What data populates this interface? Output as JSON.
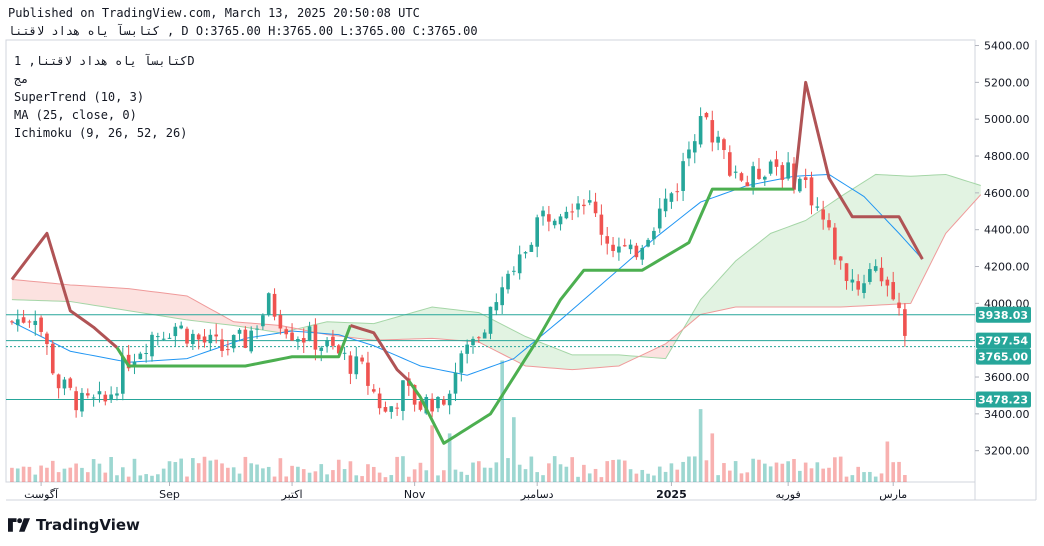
{
  "header": {
    "published": "Published on TradingView.com, March 13, 2025 20:50:08 UTC",
    "symbol_line": "کتابسآ یاه هداد لاقتنا , D O:3765.00 H:3765.00 L:3765.00 C:3765.00"
  },
  "legend": {
    "title": "کتابسآ یاه هداد لاقتنا, 1D",
    "subtitle": "مج",
    "supertrend": "SuperTrend (10, 3)",
    "ma": "MA (25, close, 0)",
    "ichimoku": "Ichimoku (9, 26, 52, 26)"
  },
  "brand": {
    "name": "TradingView"
  },
  "colors": {
    "up": "#26a69a",
    "down": "#ef5350",
    "supertrend_up": "#4caf50",
    "supertrend_down": "#b05355",
    "ma": "#2196f3",
    "cloud_up": "#d8efd8",
    "cloud_down": "#fbd8d6",
    "level": "#26a69a"
  },
  "chart_data": {
    "type": "candlestick",
    "y_axis_ticks": [
      "5400.00",
      "5200.00",
      "5000.00",
      "4800.00",
      "4600.00",
      "4400.00",
      "4200.00",
      "4000.00",
      "3600.00",
      "3400.00",
      "3200.00"
    ],
    "y_range": [
      3030,
      5430
    ],
    "x_axis_labels": [
      {
        "label": "آگوست",
        "index": 5
      },
      {
        "label": "Sep",
        "index": 27
      },
      {
        "label": "اکتبر",
        "index": 48
      },
      {
        "label": "Nov",
        "index": 69
      },
      {
        "label": "دسامبر",
        "index": 90
      },
      {
        "label": "2025",
        "index": 113
      },
      {
        "label": "فوریه",
        "index": 133
      },
      {
        "label": "مارس",
        "index": 151
      }
    ],
    "bar_count": 165,
    "price_labels": [
      {
        "value": "3938.03",
        "color": "#26a69a"
      },
      {
        "value": "3797.54",
        "color": "#26a69a"
      },
      {
        "value": "3765.00",
        "color": "#26a69a"
      },
      {
        "value": "3478.23",
        "color": "#26a69a"
      }
    ],
    "anchors": [
      [
        0,
        3900
      ],
      [
        4,
        3950
      ],
      [
        8,
        3560
      ],
      [
        12,
        3450
      ],
      [
        16,
        3460
      ],
      [
        20,
        3700
      ],
      [
        24,
        3830
      ],
      [
        28,
        3880
      ],
      [
        32,
        3800
      ],
      [
        36,
        3750
      ],
      [
        40,
        3800
      ],
      [
        44,
        4000
      ],
      [
        48,
        3850
      ],
      [
        52,
        3800
      ],
      [
        56,
        3720
      ],
      [
        60,
        3630
      ],
      [
        64,
        3400
      ],
      [
        67,
        3530
      ],
      [
        70,
        3450
      ],
      [
        74,
        3500
      ],
      [
        78,
        3760
      ],
      [
        82,
        3950
      ],
      [
        86,
        4150
      ],
      [
        90,
        4450
      ],
      [
        94,
        4540
      ],
      [
        98,
        4580
      ],
      [
        102,
        4350
      ],
      [
        106,
        4250
      ],
      [
        110,
        4450
      ],
      [
        114,
        4650
      ],
      [
        118,
        5050
      ],
      [
        122,
        4800
      ],
      [
        126,
        4650
      ],
      [
        130,
        4780
      ],
      [
        133,
        4700
      ],
      [
        136,
        4650
      ],
      [
        139,
        4450
      ],
      [
        142,
        4200
      ],
      [
        145,
        4100
      ],
      [
        148,
        4220
      ],
      [
        150,
        4100
      ],
      [
        152,
        3950
      ],
      [
        153,
        3765
      ]
    ],
    "volume_highlights": [
      [
        84,
        0.75
      ],
      [
        118,
        0.45
      ],
      [
        154,
        0.45
      ],
      [
        72,
        0.35
      ],
      [
        86,
        0.4
      ],
      [
        75,
        0.3
      ],
      [
        150,
        0.25
      ],
      [
        120,
        0.3
      ]
    ],
    "supertrend": [
      [
        0,
        4130
      ],
      [
        6,
        4380
      ],
      [
        10,
        3960
      ],
      [
        14,
        3870
      ],
      [
        18,
        3760
      ],
      [
        20,
        3660
      ],
      [
        28,
        3660
      ],
      [
        40,
        3660
      ],
      [
        48,
        3710
      ],
      [
        56,
        3710
      ],
      [
        58,
        3880
      ],
      [
        62,
        3840
      ],
      [
        66,
        3640
      ],
      [
        68,
        3580
      ],
      [
        70,
        3490
      ],
      [
        74,
        3240
      ],
      [
        82,
        3400
      ],
      [
        90,
        3800
      ],
      [
        94,
        4020
      ],
      [
        98,
        4180
      ],
      [
        108,
        4180
      ],
      [
        116,
        4330
      ],
      [
        120,
        4620
      ],
      [
        134,
        4620
      ],
      [
        136,
        5200
      ],
      [
        140,
        4680
      ],
      [
        144,
        4470
      ],
      [
        152,
        4470
      ],
      [
        156,
        4240
      ]
    ],
    "supertrend_colors": [
      [
        0,
        "down"
      ],
      [
        18,
        "up"
      ],
      [
        58,
        "down"
      ],
      [
        68,
        "up"
      ],
      [
        134,
        "down"
      ]
    ],
    "ma": [
      [
        0,
        3900
      ],
      [
        10,
        3740
      ],
      [
        20,
        3680
      ],
      [
        30,
        3700
      ],
      [
        40,
        3810
      ],
      [
        48,
        3850
      ],
      [
        56,
        3830
      ],
      [
        62,
        3770
      ],
      [
        70,
        3660
      ],
      [
        78,
        3610
      ],
      [
        86,
        3700
      ],
      [
        94,
        3910
      ],
      [
        102,
        4130
      ],
      [
        110,
        4350
      ],
      [
        118,
        4550
      ],
      [
        126,
        4640
      ],
      [
        134,
        4690
      ],
      [
        140,
        4700
      ],
      [
        146,
        4580
      ],
      [
        152,
        4380
      ],
      [
        156,
        4240
      ]
    ],
    "cloud_a": [
      [
        0,
        4020
      ],
      [
        10,
        4010
      ],
      [
        20,
        3960
      ],
      [
        30,
        3910
      ],
      [
        38,
        3880
      ],
      [
        46,
        3840
      ],
      [
        54,
        3900
      ],
      [
        62,
        3890
      ],
      [
        72,
        3980
      ],
      [
        80,
        3950
      ],
      [
        88,
        3820
      ],
      [
        96,
        3720
      ],
      [
        104,
        3720
      ],
      [
        112,
        3700
      ],
      [
        118,
        4020
      ],
      [
        124,
        4230
      ],
      [
        130,
        4380
      ],
      [
        136,
        4450
      ],
      [
        142,
        4580
      ],
      [
        148,
        4700
      ],
      [
        154,
        4690
      ],
      [
        160,
        4700
      ],
      [
        166,
        4640
      ]
    ],
    "cloud_b": [
      [
        0,
        4130
      ],
      [
        10,
        4100
      ],
      [
        20,
        4080
      ],
      [
        30,
        4040
      ],
      [
        38,
        3900
      ],
      [
        46,
        3880
      ],
      [
        54,
        3830
      ],
      [
        62,
        3800
      ],
      [
        72,
        3810
      ],
      [
        80,
        3790
      ],
      [
        88,
        3660
      ],
      [
        96,
        3640
      ],
      [
        104,
        3660
      ],
      [
        112,
        3780
      ],
      [
        118,
        3940
      ],
      [
        124,
        3980
      ],
      [
        130,
        3980
      ],
      [
        136,
        3980
      ],
      [
        142,
        3980
      ],
      [
        148,
        3990
      ],
      [
        154,
        4000
      ],
      [
        160,
        4380
      ],
      [
        166,
        4590
      ]
    ],
    "levels": [
      3938.03,
      3797.54,
      3765.0,
      3478.23
    ]
  }
}
